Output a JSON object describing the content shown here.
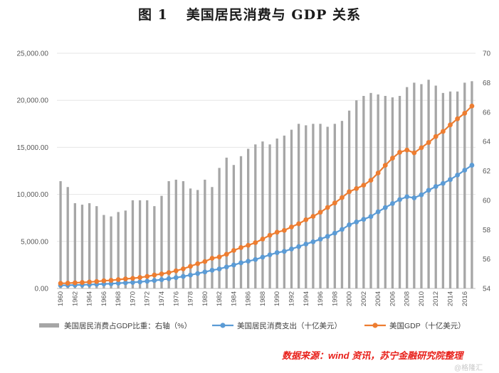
{
  "figure": {
    "number": "图 1",
    "caption": "美国居民消费与 GDP 关系"
  },
  "source_note": "数据来源：wind 资讯，苏宁金融研究院整理",
  "watermark": "@格隆汇",
  "colors": {
    "bar": "#a6a6a6",
    "consumption": "#5b9bd5",
    "gdp": "#ed7d31",
    "grid": "#e6e6e6",
    "source": "#e8201a"
  },
  "chart_data": {
    "type": "bar+line",
    "title": "美国居民消费与 GDP 关系",
    "categories": [
      1960,
      1961,
      1962,
      1963,
      1964,
      1965,
      1966,
      1967,
      1968,
      1969,
      1970,
      1971,
      1972,
      1973,
      1974,
      1975,
      1976,
      1977,
      1978,
      1979,
      1980,
      1981,
      1982,
      1983,
      1984,
      1985,
      1986,
      1987,
      1988,
      1989,
      1990,
      1991,
      1992,
      1993,
      1994,
      1995,
      1996,
      1997,
      1998,
      1999,
      2000,
      2001,
      2002,
      2003,
      2004,
      2005,
      2006,
      2007,
      2008,
      2009,
      2010,
      2011,
      2012,
      2013,
      2014,
      2015,
      2016,
      2017
    ],
    "x_tick_labels": [
      "1960",
      "1962",
      "1964",
      "1966",
      "1968",
      "1970",
      "1972",
      "1974",
      "1976",
      "1978",
      "1980",
      "1982",
      "1984",
      "1986",
      "1988",
      "1990",
      "1992",
      "1994",
      "1996",
      "1998",
      "2000",
      "2002",
      "2004",
      "2006",
      "2008",
      "2010",
      "2012",
      "2014",
      "2016"
    ],
    "y_left": {
      "min": 0,
      "max": 25000,
      "step": 5000,
      "tick_labels": [
        "0.00",
        "5,000.00",
        "10,000.00",
        "15,000.00",
        "20,000.00",
        "25,000.00"
      ]
    },
    "y_right": {
      "min": 54,
      "max": 70,
      "step": 2,
      "tick_labels": [
        "54",
        "56",
        "58",
        "60",
        "62",
        "64",
        "66",
        "68",
        "70"
      ]
    },
    "series": [
      {
        "name": "美国居民消费占GDP比重：右轴（%）",
        "kind": "bar",
        "axis": "right",
        "values": [
          61.3,
          60.9,
          59.8,
          59.7,
          59.8,
          59.6,
          59.0,
          58.9,
          59.2,
          59.3,
          60.0,
          60.0,
          60.0,
          59.6,
          60.3,
          61.3,
          61.4,
          61.3,
          60.8,
          60.7,
          61.4,
          60.9,
          62.2,
          62.9,
          62.4,
          63.0,
          63.5,
          63.8,
          64.0,
          63.8,
          64.2,
          64.4,
          64.8,
          65.2,
          65.1,
          65.2,
          65.2,
          65.0,
          65.2,
          65.4,
          66.1,
          66.8,
          67.1,
          67.3,
          67.2,
          67.1,
          67.0,
          67.1,
          67.7,
          68.0,
          67.9,
          68.2,
          67.8,
          67.3,
          67.4,
          67.4,
          68.0,
          68.1
        ]
      },
      {
        "name": "美国居民消费支出（十亿美元）",
        "kind": "line",
        "axis": "left",
        "values": [
          331,
          342,
          363,
          383,
          411,
          443,
          480,
          507,
          558,
          605,
          648,
          701,
          770,
          852,
          933,
          1034,
          1152,
          1279,
          1428,
          1592,
          1755,
          1938,
          2074,
          2287,
          2498,
          2723,
          2896,
          3076,
          3329,
          3576,
          3810,
          3943,
          4198,
          4451,
          4721,
          4963,
          5244,
          5537,
          5881,
          6279,
          6763,
          7068,
          7352,
          7651,
          8151,
          8598,
          9031,
          9453,
          9752,
          9629,
          9957,
          10441,
          10839,
          11168,
          11580,
          12055,
          12575,
          13099
        ]
      },
      {
        "name": "美国GDP（十亿美元）",
        "kind": "line",
        "axis": "left",
        "values": [
          543,
          563,
          605,
          638,
          686,
          743,
          815,
          862,
          943,
          1019,
          1075,
          1167,
          1282,
          1429,
          1549,
          1689,
          1877,
          2086,
          2357,
          2632,
          2863,
          3211,
          3345,
          3638,
          4041,
          4347,
          4590,
          4870,
          5253,
          5658,
          5980,
          6174,
          6539,
          6879,
          7309,
          7664,
          8100,
          8609,
          9089,
          9661,
          10285,
          10622,
          10978,
          11511,
          12275,
          13094,
          13856,
          14478,
          14719,
          14419,
          14964,
          15518,
          16155,
          16692,
          17393,
          18037,
          18625,
          19391
        ]
      }
    ]
  }
}
